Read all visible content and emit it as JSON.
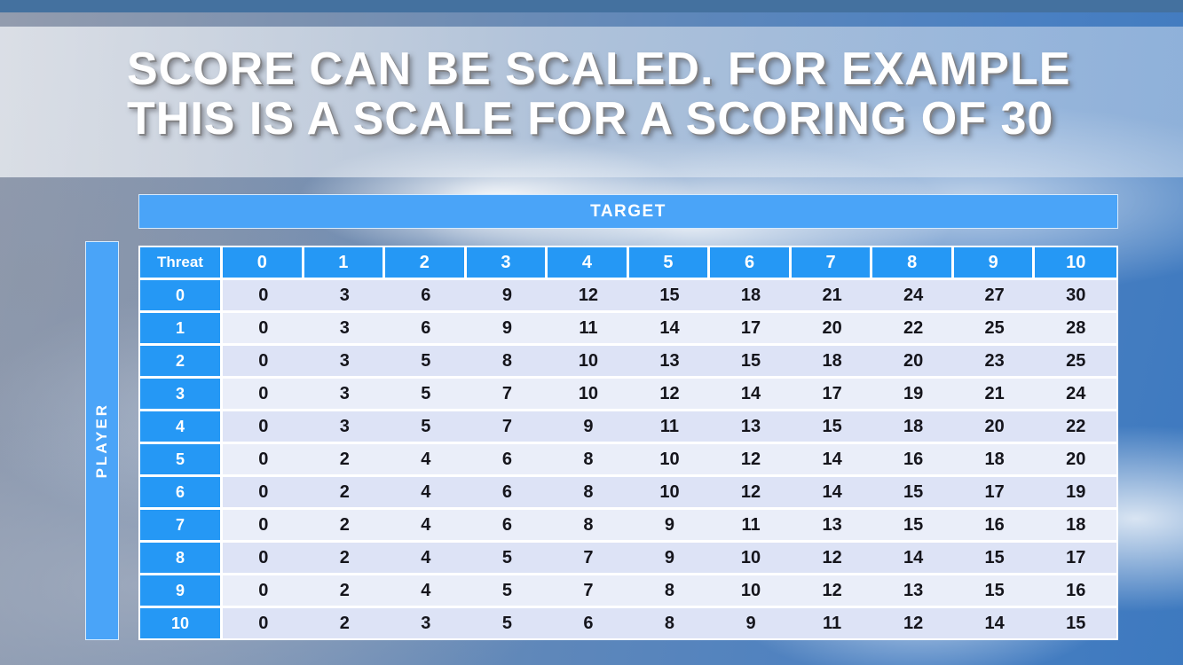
{
  "slide": {
    "title_line1": "SCORE CAN BE SCALED. FOR EXAMPLE",
    "title_line2": "THIS IS A SCALE FOR A SCORING OF 30"
  },
  "table": {
    "target_label": "TARGET",
    "player_label": "PLAYER",
    "corner_label": "Threat",
    "column_headers": [
      "0",
      "1",
      "2",
      "3",
      "4",
      "5",
      "6",
      "7",
      "8",
      "9",
      "10"
    ],
    "row_headers": [
      "0",
      "1",
      "2",
      "3",
      "4",
      "5",
      "6",
      "7",
      "8",
      "9",
      "10"
    ],
    "rows": [
      [
        0,
        3,
        6,
        9,
        12,
        15,
        18,
        21,
        24,
        27,
        30
      ],
      [
        0,
        3,
        6,
        9,
        11,
        14,
        17,
        20,
        22,
        25,
        28
      ],
      [
        0,
        3,
        5,
        8,
        10,
        13,
        15,
        18,
        20,
        23,
        25
      ],
      [
        0,
        3,
        5,
        7,
        10,
        12,
        14,
        17,
        19,
        21,
        24
      ],
      [
        0,
        3,
        5,
        7,
        9,
        11,
        13,
        15,
        18,
        20,
        22
      ],
      [
        0,
        2,
        4,
        6,
        8,
        10,
        12,
        14,
        16,
        18,
        20
      ],
      [
        0,
        2,
        4,
        6,
        8,
        10,
        12,
        14,
        15,
        17,
        19
      ],
      [
        0,
        2,
        4,
        6,
        8,
        9,
        11,
        13,
        15,
        16,
        18
      ],
      [
        0,
        2,
        4,
        5,
        7,
        9,
        10,
        12,
        14,
        15,
        17
      ],
      [
        0,
        2,
        4,
        5,
        7,
        8,
        10,
        12,
        13,
        15,
        16
      ],
      [
        0,
        2,
        3,
        5,
        6,
        8,
        9,
        11,
        12,
        14,
        15
      ]
    ]
  },
  "colors": {
    "header_blue": "#2598f5",
    "bar_blue": "#4aa4f8",
    "row_even": "#dde3f6",
    "row_odd": "#eaeef9",
    "cell_text": "#15151c",
    "top_bar": "#44719f",
    "title_text": "#ffffff"
  }
}
